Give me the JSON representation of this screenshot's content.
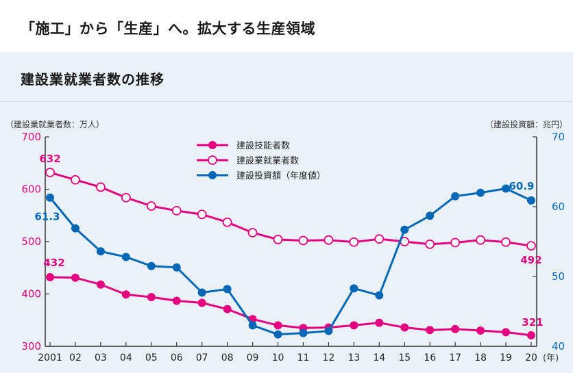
{
  "headline": "「施工」から「生産」へ。拡大する生産領域",
  "panel_title": "建設業就業者数の推移",
  "colors": {
    "magenta": "#e5007f",
    "blue": "#0068b7",
    "axis": "#333333",
    "panel_bg": "#eaf2f8"
  },
  "chart_data": {
    "type": "line",
    "title": "建設業就業者数の推移",
    "left_axis": {
      "label": "（建設業就業者数：万人）",
      "range": [
        300,
        700
      ],
      "ticks": [
        "300",
        "400",
        "500",
        "600",
        "700"
      ],
      "color": "#e5007f"
    },
    "right_axis": {
      "label": "（建設投資額：兆円）",
      "range": [
        40,
        70
      ],
      "ticks": [
        "40",
        "50",
        "60",
        "70"
      ],
      "color": "#0068b7"
    },
    "x_unit": "(年)",
    "categories": [
      "2001",
      "02",
      "03",
      "04",
      "05",
      "06",
      "07",
      "08",
      "09",
      "10",
      "11",
      "12",
      "13",
      "14",
      "15",
      "16",
      "17",
      "18",
      "19",
      "20"
    ],
    "series": [
      {
        "name": "建設技能者数",
        "axis": "left",
        "marker": "filled",
        "color": "#e5007f",
        "values": [
          432,
          431,
          418,
          399,
          394,
          387,
          383,
          371,
          352,
          340,
          335,
          336,
          340,
          345,
          336,
          331,
          333,
          330,
          327,
          321
        ],
        "labels": [
          {
            "index": 0,
            "text": "432"
          },
          {
            "index": 19,
            "text": "321"
          }
        ]
      },
      {
        "name": "建設業就業者数",
        "axis": "left",
        "marker": "open",
        "color": "#e5007f",
        "values": [
          632,
          618,
          604,
          584,
          568,
          559,
          552,
          537,
          517,
          504,
          502,
          503,
          499,
          505,
          500,
          495,
          498,
          503,
          499,
          492
        ],
        "labels": [
          {
            "index": 0,
            "text": "632"
          },
          {
            "index": 19,
            "text": "492"
          }
        ]
      },
      {
        "name": "建設投資額（年度値）",
        "axis": "right",
        "marker": "filled",
        "color": "#0068b7",
        "values": [
          61.3,
          56.9,
          53.6,
          52.8,
          51.5,
          51.3,
          47.7,
          48.2,
          43.0,
          41.7,
          41.9,
          42.2,
          48.3,
          47.3,
          56.7,
          58.7,
          61.5,
          62.0,
          62.6,
          60.9
        ],
        "labels": [
          {
            "index": 0,
            "text": "61.3"
          },
          {
            "index": 19,
            "text": "60.9"
          }
        ]
      }
    ],
    "legend": [
      "建設技能者数",
      "建設業就業者数",
      "建設投資額（年度値）"
    ],
    "legend_placement": "top-center",
    "grid": false
  }
}
